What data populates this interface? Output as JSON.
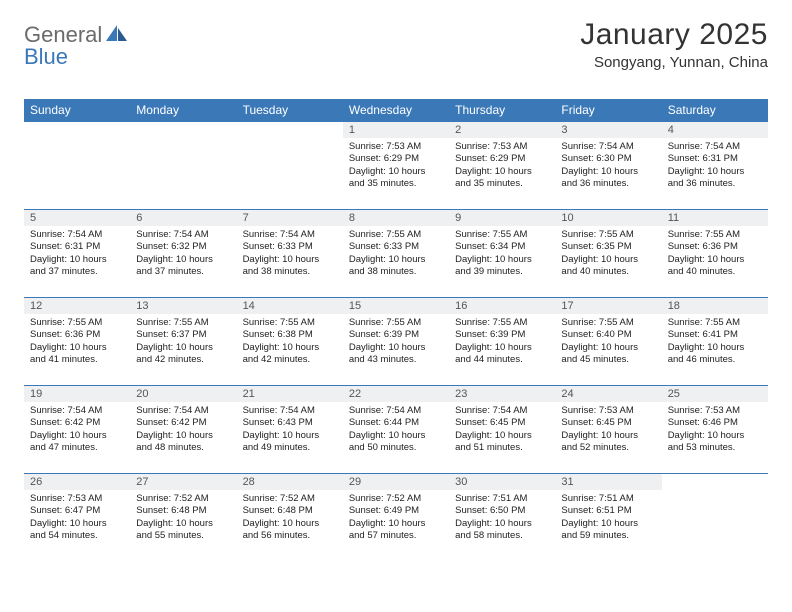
{
  "logo": {
    "part1": "General",
    "part2": "Blue"
  },
  "title": "January 2025",
  "location": "Songyang, Yunnan, China",
  "colors": {
    "header_bg": "#3b78b8",
    "header_text": "#ffffff",
    "daynum_bg": "#eef0f2",
    "border": "#3b78b8",
    "logo_gray": "#6b6b6b",
    "logo_blue": "#3b78b8"
  },
  "weekdays": [
    "Sunday",
    "Monday",
    "Tuesday",
    "Wednesday",
    "Thursday",
    "Friday",
    "Saturday"
  ],
  "weeks": [
    [
      null,
      null,
      null,
      {
        "d": "1",
        "sr": "7:53 AM",
        "ss": "6:29 PM",
        "dl": "10 hours and 35 minutes."
      },
      {
        "d": "2",
        "sr": "7:53 AM",
        "ss": "6:29 PM",
        "dl": "10 hours and 35 minutes."
      },
      {
        "d": "3",
        "sr": "7:54 AM",
        "ss": "6:30 PM",
        "dl": "10 hours and 36 minutes."
      },
      {
        "d": "4",
        "sr": "7:54 AM",
        "ss": "6:31 PM",
        "dl": "10 hours and 36 minutes."
      }
    ],
    [
      {
        "d": "5",
        "sr": "7:54 AM",
        "ss": "6:31 PM",
        "dl": "10 hours and 37 minutes."
      },
      {
        "d": "6",
        "sr": "7:54 AM",
        "ss": "6:32 PM",
        "dl": "10 hours and 37 minutes."
      },
      {
        "d": "7",
        "sr": "7:54 AM",
        "ss": "6:33 PM",
        "dl": "10 hours and 38 minutes."
      },
      {
        "d": "8",
        "sr": "7:55 AM",
        "ss": "6:33 PM",
        "dl": "10 hours and 38 minutes."
      },
      {
        "d": "9",
        "sr": "7:55 AM",
        "ss": "6:34 PM",
        "dl": "10 hours and 39 minutes."
      },
      {
        "d": "10",
        "sr": "7:55 AM",
        "ss": "6:35 PM",
        "dl": "10 hours and 40 minutes."
      },
      {
        "d": "11",
        "sr": "7:55 AM",
        "ss": "6:36 PM",
        "dl": "10 hours and 40 minutes."
      }
    ],
    [
      {
        "d": "12",
        "sr": "7:55 AM",
        "ss": "6:36 PM",
        "dl": "10 hours and 41 minutes."
      },
      {
        "d": "13",
        "sr": "7:55 AM",
        "ss": "6:37 PM",
        "dl": "10 hours and 42 minutes."
      },
      {
        "d": "14",
        "sr": "7:55 AM",
        "ss": "6:38 PM",
        "dl": "10 hours and 42 minutes."
      },
      {
        "d": "15",
        "sr": "7:55 AM",
        "ss": "6:39 PM",
        "dl": "10 hours and 43 minutes."
      },
      {
        "d": "16",
        "sr": "7:55 AM",
        "ss": "6:39 PM",
        "dl": "10 hours and 44 minutes."
      },
      {
        "d": "17",
        "sr": "7:55 AM",
        "ss": "6:40 PM",
        "dl": "10 hours and 45 minutes."
      },
      {
        "d": "18",
        "sr": "7:55 AM",
        "ss": "6:41 PM",
        "dl": "10 hours and 46 minutes."
      }
    ],
    [
      {
        "d": "19",
        "sr": "7:54 AM",
        "ss": "6:42 PM",
        "dl": "10 hours and 47 minutes."
      },
      {
        "d": "20",
        "sr": "7:54 AM",
        "ss": "6:42 PM",
        "dl": "10 hours and 48 minutes."
      },
      {
        "d": "21",
        "sr": "7:54 AM",
        "ss": "6:43 PM",
        "dl": "10 hours and 49 minutes."
      },
      {
        "d": "22",
        "sr": "7:54 AM",
        "ss": "6:44 PM",
        "dl": "10 hours and 50 minutes."
      },
      {
        "d": "23",
        "sr": "7:54 AM",
        "ss": "6:45 PM",
        "dl": "10 hours and 51 minutes."
      },
      {
        "d": "24",
        "sr": "7:53 AM",
        "ss": "6:45 PM",
        "dl": "10 hours and 52 minutes."
      },
      {
        "d": "25",
        "sr": "7:53 AM",
        "ss": "6:46 PM",
        "dl": "10 hours and 53 minutes."
      }
    ],
    [
      {
        "d": "26",
        "sr": "7:53 AM",
        "ss": "6:47 PM",
        "dl": "10 hours and 54 minutes."
      },
      {
        "d": "27",
        "sr": "7:52 AM",
        "ss": "6:48 PM",
        "dl": "10 hours and 55 minutes."
      },
      {
        "d": "28",
        "sr": "7:52 AM",
        "ss": "6:48 PM",
        "dl": "10 hours and 56 minutes."
      },
      {
        "d": "29",
        "sr": "7:52 AM",
        "ss": "6:49 PM",
        "dl": "10 hours and 57 minutes."
      },
      {
        "d": "30",
        "sr": "7:51 AM",
        "ss": "6:50 PM",
        "dl": "10 hours and 58 minutes."
      },
      {
        "d": "31",
        "sr": "7:51 AM",
        "ss": "6:51 PM",
        "dl": "10 hours and 59 minutes."
      },
      null
    ]
  ],
  "labels": {
    "sunrise": "Sunrise:",
    "sunset": "Sunset:",
    "daylight": "Daylight:"
  }
}
